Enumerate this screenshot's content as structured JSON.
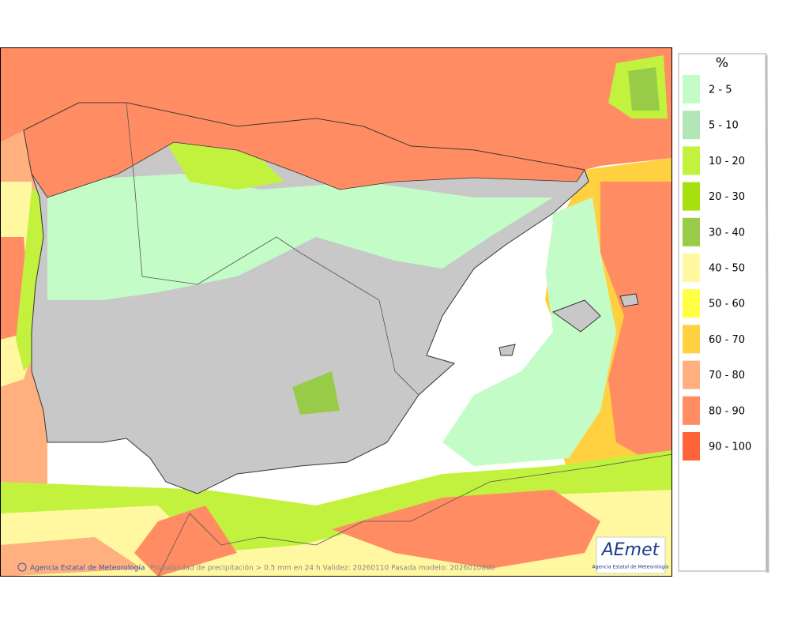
{
  "legend": {
    "title": "%",
    "items": [
      {
        "label": "2 - 5",
        "color": "#c4fcc8"
      },
      {
        "label": "5 - 10",
        "color": "#b2e6b6"
      },
      {
        "label": "10 - 20",
        "color": "#c2f23e"
      },
      {
        "label": "20 - 30",
        "color": "#a6e00e"
      },
      {
        "label": "30 - 40",
        "color": "#98cc48"
      },
      {
        "label": "40 - 50",
        "color": "#fff8a0"
      },
      {
        "label": "50 - 60",
        "color": "#ffff44"
      },
      {
        "label": "60 - 70",
        "color": "#ffd040"
      },
      {
        "label": "70 - 80",
        "color": "#ffb07e"
      },
      {
        "label": "80 - 90",
        "color": "#ff8c62"
      },
      {
        "label": "90 - 100",
        "color": "#ff6438"
      }
    ]
  },
  "footer": {
    "agency": "Agencia Estatal de Meteorología",
    "caption": "Probabilidad de precipitación > 0.5 mm en 24 h Validez: 20260110 Pasada modelo: 2026010800"
  },
  "logo": {
    "name": "AEmet",
    "subtitle": "Agencia Estatal de Meteorología"
  }
}
